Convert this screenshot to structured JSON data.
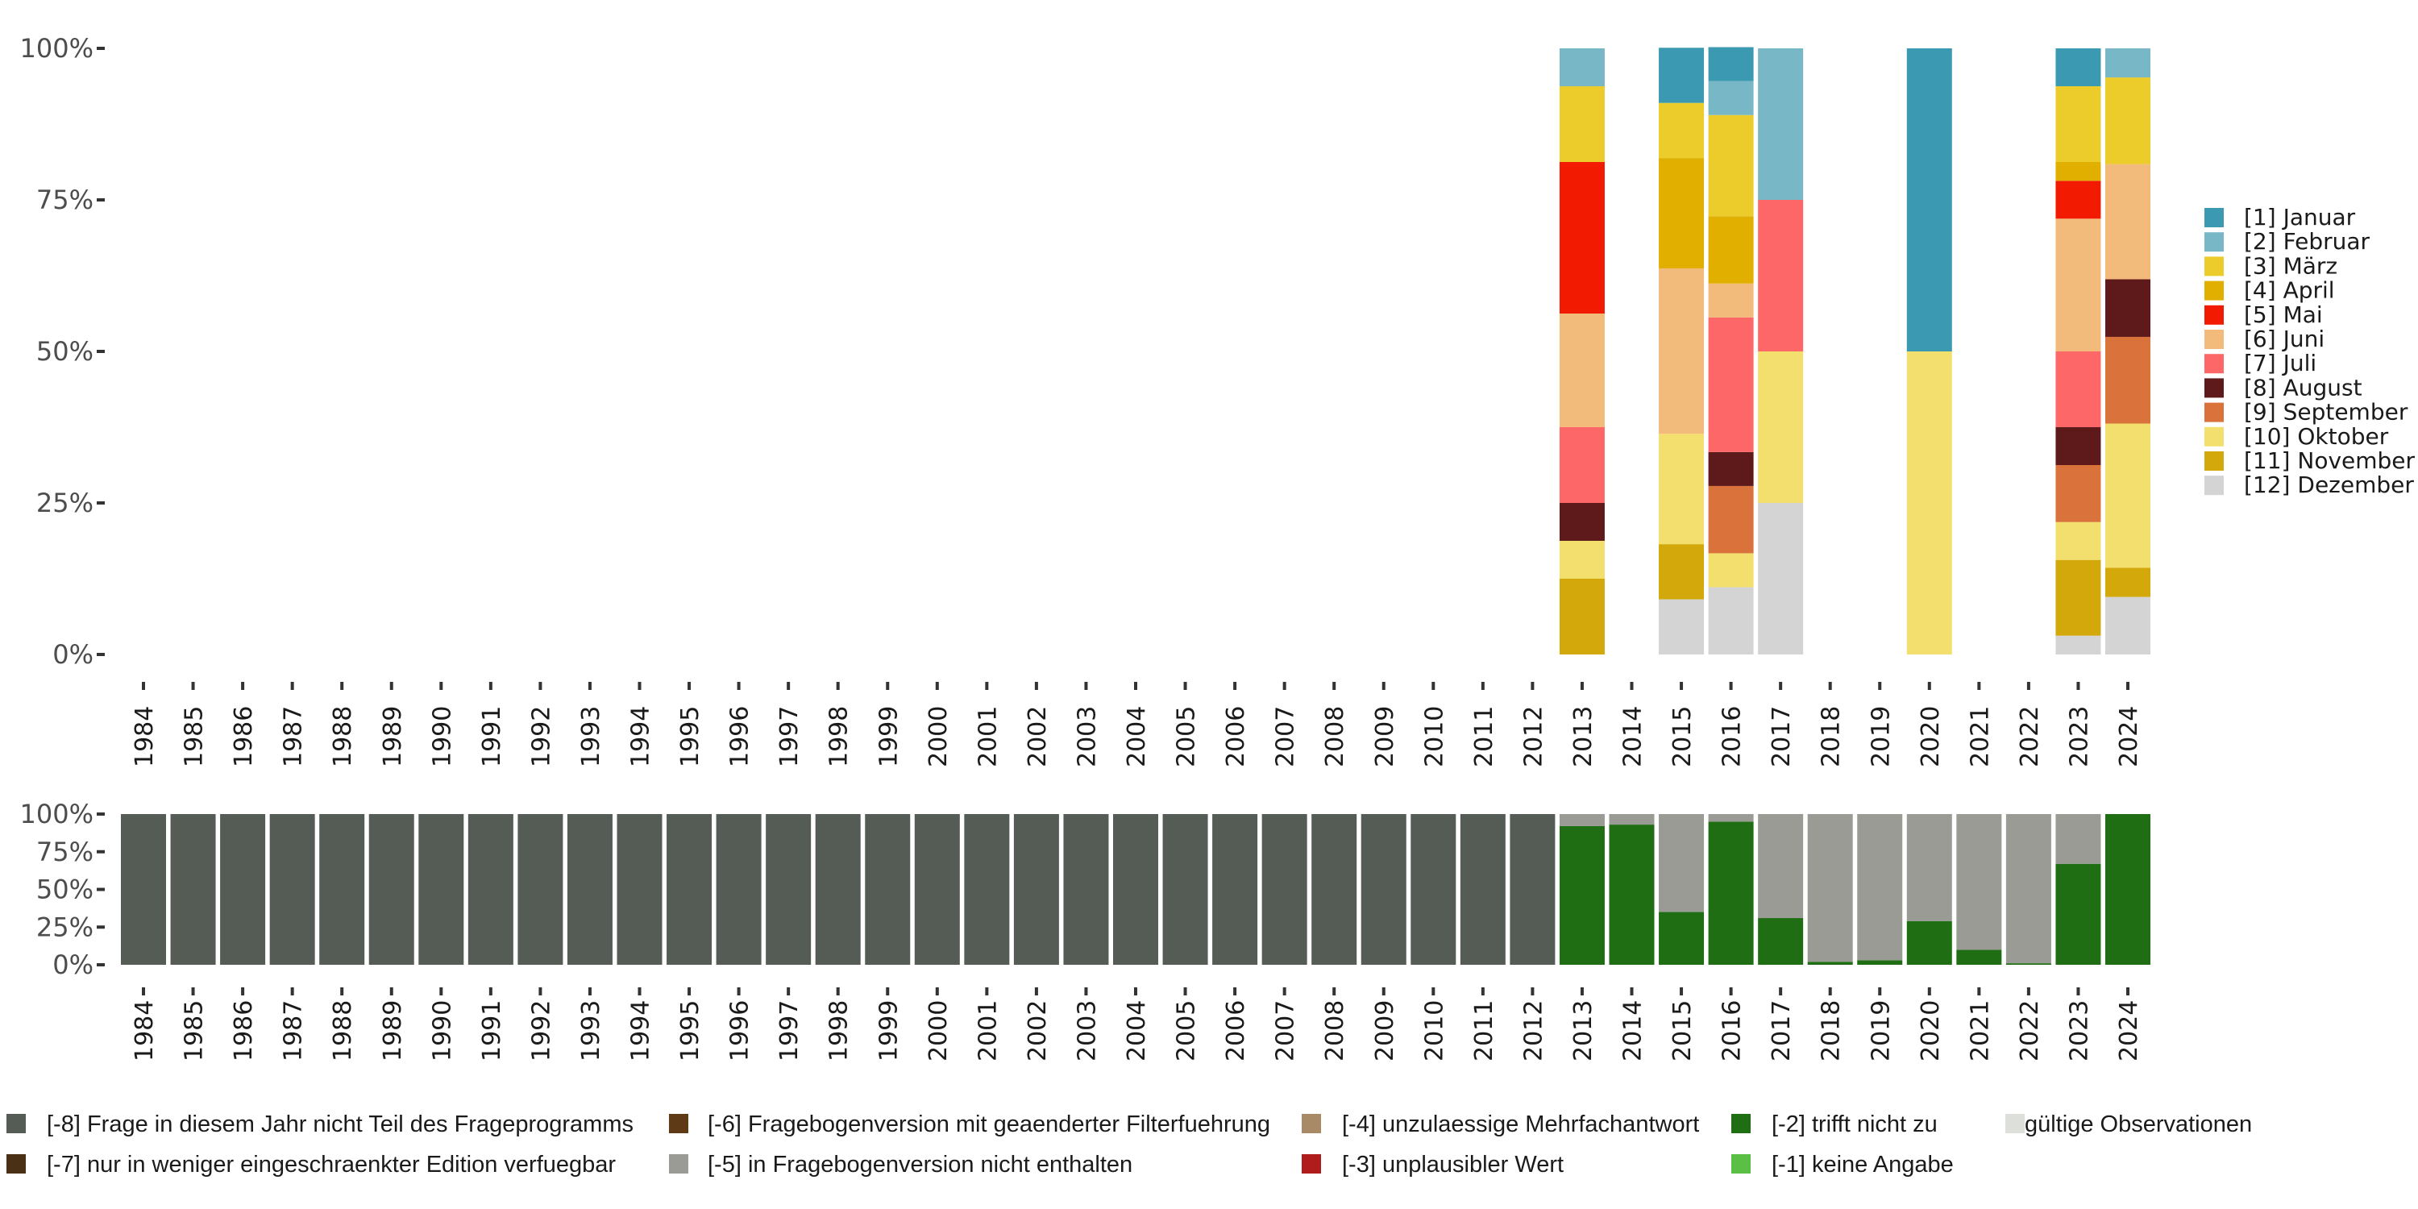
{
  "chart_data": [
    {
      "type": "bar",
      "stacked": true,
      "title": "",
      "xlabel": "",
      "ylabel": "",
      "ylim": [
        0,
        100
      ],
      "y_ticks": [
        "0%",
        "25%",
        "50%",
        "75%",
        "100%"
      ],
      "categories": [
        "1984",
        "1985",
        "1986",
        "1987",
        "1988",
        "1989",
        "1990",
        "1991",
        "1992",
        "1993",
        "1994",
        "1995",
        "1996",
        "1997",
        "1998",
        "1999",
        "2000",
        "2001",
        "2002",
        "2003",
        "2004",
        "2005",
        "2006",
        "2007",
        "2008",
        "2009",
        "2010",
        "2011",
        "2012",
        "2013",
        "2014",
        "2015",
        "2016",
        "2017",
        "2018",
        "2019",
        "2020",
        "2021",
        "2022",
        "2023",
        "2024"
      ],
      "legend_position": "right",
      "series": [
        {
          "name": "[12] Dezember",
          "color": "#d4d4d4",
          "values": {
            "2015": 9.1,
            "2016": 11.1,
            "2017": 25,
            "2023": 3.1,
            "2024": 9.5
          }
        },
        {
          "name": "[11] November",
          "color": "#d2a80b",
          "values": {
            "2013": 12.5,
            "2015": 9.1,
            "2023": 12.5,
            "2024": 4.8
          }
        },
        {
          "name": "[10] Oktober",
          "color": "#f3df6d",
          "values": {
            "2013": 6.25,
            "2015": 18.2,
            "2016": 5.6,
            "2017": 25,
            "2020": 50,
            "2023": 6.25,
            "2024": 23.8
          }
        },
        {
          "name": "[9] September",
          "color": "#d9733b",
          "values": {
            "2016": 11.1,
            "2023": 9.4,
            "2024": 14.3
          }
        },
        {
          "name": "[8] August",
          "color": "#5e1a1a",
          "values": {
            "2013": 6.25,
            "2016": 5.6,
            "2023": 6.25,
            "2024": 9.5
          }
        },
        {
          "name": "[7] Juli",
          "color": "#fe6767",
          "values": {
            "2013": 12.5,
            "2016": 22.2,
            "2017": 25,
            "2023": 12.5
          }
        },
        {
          "name": "[6] Juni",
          "color": "#f2bb7b",
          "values": {
            "2013": 18.75,
            "2015": 27.3,
            "2016": 5.6,
            "2023": 21.9,
            "2024": 19.0
          }
        },
        {
          "name": "[5] Mai",
          "color": "#f21a00",
          "values": {
            "2013": 25,
            "2023": 6.25
          }
        },
        {
          "name": "[4] April",
          "color": "#e1af00",
          "values": {
            "2015": 18.2,
            "2016": 11.1,
            "2023": 3.1
          }
        },
        {
          "name": "[3] März",
          "color": "#ebcc2a",
          "values": {
            "2013": 12.5,
            "2015": 9.1,
            "2016": 16.7,
            "2023": 12.5,
            "2024": 14.3
          }
        },
        {
          "name": "[2] Februar",
          "color": "#78b7c5",
          "values": {
            "2013": 6.25,
            "2016": 5.6,
            "2017": 25,
            "2024": 4.8
          }
        },
        {
          "name": "[1] Januar",
          "color": "#3b9ab2",
          "values": {
            "2015": 9.1,
            "2016": 5.6,
            "2020": 50,
            "2023": 6.25
          }
        }
      ],
      "legend": [
        "[1] Januar",
        "[2] Februar",
        "[3] März",
        "[4] April",
        "[5] Mai",
        "[6] Juni",
        "[7] Juli",
        "[8] August",
        "[9] September",
        "[10] Oktober",
        "[11] November",
        "[12] Dezember"
      ]
    },
    {
      "type": "bar",
      "stacked": true,
      "title": "",
      "xlabel": "",
      "ylabel": "",
      "ylim": [
        0,
        100
      ],
      "y_ticks": [
        "0%",
        "25%",
        "50%",
        "75%",
        "100%"
      ],
      "categories": [
        "1984",
        "1985",
        "1986",
        "1987",
        "1988",
        "1989",
        "1990",
        "1991",
        "1992",
        "1993",
        "1994",
        "1995",
        "1996",
        "1997",
        "1998",
        "1999",
        "2000",
        "2001",
        "2002",
        "2003",
        "2004",
        "2005",
        "2006",
        "2007",
        "2008",
        "2009",
        "2010",
        "2011",
        "2012",
        "2013",
        "2014",
        "2015",
        "2016",
        "2017",
        "2018",
        "2019",
        "2020",
        "2021",
        "2022",
        "2023",
        "2024"
      ],
      "legend_position": "bottom",
      "series": [
        {
          "name": "[-2] trifft nicht zu",
          "color": "#1f6e13",
          "values": {
            "2013": 92,
            "2014": 93,
            "2015": 35,
            "2016": 95,
            "2017": 31,
            "2018": 2,
            "2019": 3,
            "2020": 29,
            "2021": 10,
            "2022": 1,
            "2023": 67,
            "2024": 100
          }
        },
        {
          "name": "[-5] in Fragebogenversion nicht enthalten",
          "color": "#999b94",
          "values": {
            "2013": 8,
            "2014": 7,
            "2015": 65,
            "2016": 5,
            "2017": 69,
            "2018": 98,
            "2019": 97,
            "2020": 71,
            "2021": 90,
            "2022": 99,
            "2023": 33
          }
        },
        {
          "name": "[-8] Frage in diesem Jahr nicht Teil des Frageprogramms",
          "color": "#545c55",
          "values": {
            "1984": 100,
            "1985": 100,
            "1986": 100,
            "1987": 100,
            "1988": 100,
            "1989": 100,
            "1990": 100,
            "1991": 100,
            "1992": 100,
            "1993": 100,
            "1994": 100,
            "1995": 100,
            "1996": 100,
            "1997": 100,
            "1998": 100,
            "1999": 100,
            "2000": 100,
            "2001": 100,
            "2002": 100,
            "2003": 100,
            "2004": 100,
            "2005": 100,
            "2006": 100,
            "2007": 100,
            "2008": 100,
            "2009": 100,
            "2010": 100,
            "2011": 100,
            "2012": 100
          }
        }
      ],
      "legend": [
        {
          "label": "[-8] Frage in diesem Jahr nicht Teil des Frageprogramms",
          "color": "#545c55"
        },
        {
          "label": "[-6] Fragebogenversion mit geaenderter Filterfuehrung",
          "color": "#5e3a16"
        },
        {
          "label": "[-4] unzulaessige Mehrfachantwort",
          "color": "#a88a66"
        },
        {
          "label": "[-2] trifft nicht zu",
          "color": "#1f6e13"
        },
        {
          "label": "gültige Observationen",
          "color": "#dde0da"
        },
        {
          "label": "[-7] nur in weniger eingeschraenkter Edition verfuegbar",
          "color": "#4a3014"
        },
        {
          "label": "[-5] in Fragebogenversion nicht enthalten",
          "color": "#999b94"
        },
        {
          "label": "[-3] unplausibler Wert",
          "color": "#b01c1c"
        },
        {
          "label": "[-1] keine Angabe",
          "color": "#5cbf45"
        }
      ]
    }
  ]
}
